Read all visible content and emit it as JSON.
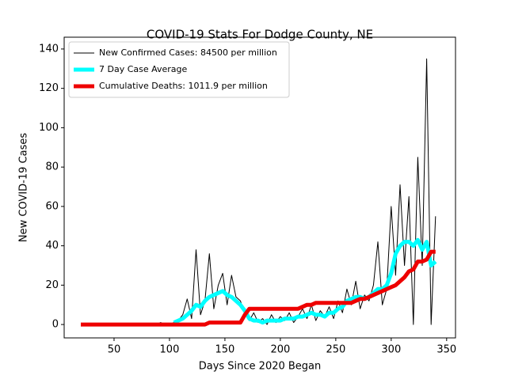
{
  "chart_data": {
    "type": "line",
    "title": "COVID-19 Stats For Dodge County, NE",
    "xlabel": "Days Since 2020 Began",
    "ylabel": "New COVID-19 Cases",
    "x": [
      20,
      24,
      28,
      32,
      36,
      40,
      44,
      48,
      52,
      56,
      60,
      64,
      68,
      72,
      76,
      80,
      84,
      88,
      92,
      96,
      100,
      104,
      108,
      112,
      116,
      120,
      124,
      128,
      132,
      136,
      140,
      144,
      148,
      152,
      156,
      160,
      164,
      168,
      172,
      176,
      180,
      184,
      188,
      192,
      196,
      200,
      204,
      208,
      212,
      216,
      220,
      224,
      228,
      232,
      236,
      240,
      244,
      248,
      252,
      256,
      260,
      264,
      268,
      272,
      276,
      280,
      284,
      288,
      292,
      296,
      300,
      304,
      308,
      312,
      316,
      320,
      324,
      328,
      332,
      336,
      340
    ],
    "series": [
      {
        "name": "New Confirmed Cases: 84500 per million",
        "color": "#000000",
        "values": [
          null,
          null,
          null,
          null,
          null,
          null,
          null,
          null,
          null,
          null,
          null,
          null,
          null,
          null,
          null,
          null,
          null,
          0,
          1,
          0,
          0,
          1,
          2,
          5,
          13,
          3,
          38,
          5,
          12,
          36,
          8,
          20,
          26,
          10,
          25,
          14,
          12,
          5,
          2,
          6,
          1,
          3,
          0,
          5,
          1,
          4,
          2,
          6,
          1,
          4,
          8,
          3,
          10,
          2,
          7,
          4,
          9,
          3,
          12,
          6,
          18,
          10,
          22,
          8,
          15,
          12,
          20,
          42,
          10,
          18,
          60,
          25,
          71,
          30,
          65,
          0,
          85,
          30,
          135,
          0,
          55
        ]
      },
      {
        "name": "7 Day Case Average",
        "color": "#00ffff",
        "values": [
          null,
          null,
          null,
          null,
          null,
          null,
          null,
          null,
          null,
          null,
          null,
          null,
          null,
          null,
          null,
          null,
          null,
          null,
          null,
          null,
          null,
          1,
          2,
          3,
          5,
          7,
          10,
          9,
          12,
          14,
          15,
          16,
          17,
          15,
          14,
          12,
          10,
          7,
          3,
          2,
          2,
          1,
          2,
          2,
          2,
          2,
          3,
          3,
          3,
          4,
          4,
          5,
          6,
          5,
          5,
          4,
          6,
          6,
          8,
          9,
          12,
          13,
          14,
          14,
          13,
          14,
          16,
          18,
          18,
          20,
          26,
          36,
          40,
          42,
          42,
          40,
          43,
          38,
          42,
          30,
          32
        ]
      },
      {
        "name": "Cumulative Deaths: 1011.9 per million",
        "color": "#ee0000",
        "values": [
          0,
          0,
          0,
          0,
          0,
          0,
          0,
          0,
          0,
          0,
          0,
          0,
          0,
          0,
          0,
          0,
          0,
          0,
          0,
          0,
          0,
          0,
          0,
          0,
          0,
          0,
          0,
          0,
          0,
          1,
          1,
          1,
          1,
          1,
          1,
          1,
          1,
          5,
          8,
          8,
          8,
          8,
          8,
          8,
          8,
          8,
          8,
          8,
          8,
          8,
          9,
          10,
          10,
          11,
          11,
          11,
          11,
          11,
          11,
          11,
          11,
          11,
          12,
          13,
          13,
          14,
          15,
          16,
          17,
          18,
          19,
          20,
          22,
          24,
          27,
          28,
          32,
          32,
          33,
          37,
          37
        ]
      }
    ],
    "xlim": [
      5,
      358
    ],
    "xticks": [
      50,
      100,
      150,
      200,
      250,
      300,
      350
    ],
    "ylim": [
      -6.8,
      146
    ],
    "yticks": [
      0,
      20,
      40,
      60,
      80,
      100,
      120,
      140
    ],
    "legend": "upper left"
  }
}
